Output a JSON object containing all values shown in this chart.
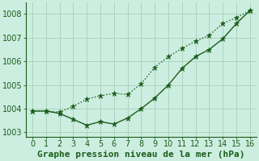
{
  "title": "Graphe pression niveau de la mer (hPa)",
  "background_color": "#cceee0",
  "grid_color": "#aad4c0",
  "line_color": "#1a5c1a",
  "xlim": [
    -0.5,
    16.5
  ],
  "ylim": [
    1002.8,
    1008.5
  ],
  "yticks": [
    1003,
    1004,
    1005,
    1006,
    1007,
    1008
  ],
  "xticks": [
    0,
    1,
    2,
    3,
    4,
    5,
    6,
    7,
    8,
    9,
    10,
    11,
    12,
    13,
    14,
    15,
    16
  ],
  "series1_x": [
    0,
    1,
    2,
    3,
    4,
    5,
    6,
    7,
    8,
    9,
    10,
    11,
    12,
    13,
    14,
    15,
    16
  ],
  "series1_y": [
    1003.9,
    1003.9,
    1003.85,
    1004.1,
    1004.4,
    1004.55,
    1004.65,
    1004.6,
    1005.05,
    1005.75,
    1006.2,
    1006.55,
    1006.85,
    1007.1,
    1007.6,
    1007.85,
    1008.15
  ],
  "series2_x": [
    0,
    1,
    2,
    3,
    4,
    5,
    6,
    7,
    8,
    9,
    10,
    11,
    12,
    13,
    14,
    15,
    16
  ],
  "series2_y": [
    1003.9,
    1003.9,
    1003.8,
    1003.55,
    1003.3,
    1003.45,
    1003.35,
    1003.6,
    1004.0,
    1004.45,
    1005.0,
    1005.7,
    1006.2,
    1006.5,
    1006.95,
    1007.6,
    1008.15
  ],
  "title_fontsize": 8,
  "tick_fontsize": 7
}
